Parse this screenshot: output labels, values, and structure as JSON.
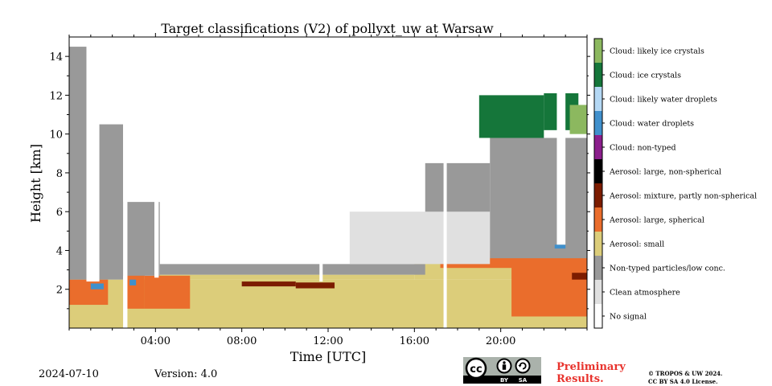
{
  "chart_data": {
    "type": "heatmap",
    "title": "Target classifications (V2) of pollyxt_uw at Warsaw",
    "xlabel": "Time [UTC]",
    "ylabel": "Height [km]",
    "x_ticks": [
      "04:00",
      "08:00",
      "12:00",
      "16:00",
      "20:00"
    ],
    "x_tick_hours": [
      4,
      8,
      12,
      16,
      20
    ],
    "xlim_hours": [
      0,
      24
    ],
    "y_ticks": [
      2,
      4,
      6,
      8,
      10,
      12,
      14
    ],
    "ylim_km": [
      0,
      15
    ],
    "legend_placement": "right",
    "classes": [
      {
        "label": "Cloud: likely ice crystals",
        "color": "#8cb85f"
      },
      {
        "label": "Cloud: ice crystals",
        "color": "#15763a"
      },
      {
        "label": "Cloud: likely water droplets",
        "color": "#b4d8f4"
      },
      {
        "label": "Cloud: water droplets",
        "color": "#4090cc"
      },
      {
        "label": "Cloud: non-typed",
        "color": "#8b1e8c"
      },
      {
        "label": "Aerosol: large, non-spherical",
        "color": "#000000"
      },
      {
        "label": "Aerosol: mixture, partly non-spherical",
        "color": "#7c1c00"
      },
      {
        "label": "Aerosol: large, spherical",
        "color": "#ea6d2c"
      },
      {
        "label": "Aerosol: small",
        "color": "#dccd7a"
      },
      {
        "label": "Non-typed particles/low conc.",
        "color": "#999999"
      },
      {
        "label": "Clean atmosphere",
        "color": "#e0e0e0"
      },
      {
        "label": "No signal",
        "color": "#ffffff"
      }
    ],
    "regions": [
      {
        "class": "Aerosol: small",
        "t": [
          0,
          24
        ],
        "h": [
          0,
          2.5
        ]
      },
      {
        "class": "Aerosol: small",
        "t": [
          4,
          16
        ],
        "h": [
          2.5,
          2.75
        ]
      },
      {
        "class": "Aerosol: small",
        "t": [
          16,
          24
        ],
        "h": [
          2.5,
          3.6
        ]
      },
      {
        "class": "Aerosol: large, spherical",
        "t": [
          0,
          1.8
        ],
        "h": [
          1.2,
          2.5
        ]
      },
      {
        "class": "Aerosol: large, spherical",
        "t": [
          2.7,
          3.5
        ],
        "h": [
          1.0,
          3.9
        ]
      },
      {
        "class": "Aerosol: large, spherical",
        "t": [
          3.5,
          5.6
        ],
        "h": [
          1.0,
          2.7
        ]
      },
      {
        "class": "Aerosol: large, spherical",
        "t": [
          20.5,
          24
        ],
        "h": [
          0.6,
          4.2
        ]
      },
      {
        "class": "Aerosol: large, spherical",
        "t": [
          17.2,
          21
        ],
        "h": [
          3.1,
          4.0
        ]
      },
      {
        "class": "Aerosol: mixture, partly non-spherical",
        "t": [
          8,
          10.5
        ],
        "h": [
          2.15,
          2.4
        ]
      },
      {
        "class": "Aerosol: mixture, partly non-spherical",
        "t": [
          10.5,
          12.3
        ],
        "h": [
          2.05,
          2.35
        ]
      },
      {
        "class": "Aerosol: mixture, partly non-spherical",
        "t": [
          23.3,
          24
        ],
        "h": [
          2.5,
          2.85
        ]
      },
      {
        "class": "Non-typed particles/low conc.",
        "t": [
          0,
          1.3
        ],
        "h": [
          2.5,
          14.5
        ]
      },
      {
        "class": "Non-typed particles/low conc.",
        "t": [
          1.3,
          2.5
        ],
        "h": [
          2.5,
          10.5
        ]
      },
      {
        "class": "Non-typed particles/low conc.",
        "t": [
          2.5,
          4.2
        ],
        "h": [
          2.7,
          6.5
        ]
      },
      {
        "class": "Non-typed particles/low conc.",
        "t": [
          4.2,
          16.5
        ],
        "h": [
          2.75,
          3.3
        ]
      },
      {
        "class": "Non-typed particles/low conc.",
        "t": [
          16.5,
          19.5
        ],
        "h": [
          3.6,
          8.5
        ]
      },
      {
        "class": "Non-typed particles/low conc.",
        "t": [
          19.5,
          24
        ],
        "h": [
          3.6,
          9.8
        ]
      },
      {
        "class": "Clean atmosphere",
        "t": [
          13,
          19.5
        ],
        "h": [
          3.3,
          6.0
        ]
      },
      {
        "class": "Cloud: ice crystals",
        "t": [
          19,
          22
        ],
        "h": [
          9.8,
          12.0
        ]
      },
      {
        "class": "Cloud: ice crystals",
        "t": [
          22,
          23.6
        ],
        "h": [
          10.2,
          12.1
        ]
      },
      {
        "class": "Cloud: likely ice crystals",
        "t": [
          23.2,
          24
        ],
        "h": [
          10.0,
          11.5
        ]
      },
      {
        "class": "Cloud: water droplets",
        "t": [
          1.0,
          1.6
        ],
        "h": [
          2.0,
          2.3
        ]
      },
      {
        "class": "Cloud: water droplets",
        "t": [
          2.8,
          3.1
        ],
        "h": [
          2.2,
          2.5
        ]
      },
      {
        "class": "Cloud: water droplets",
        "t": [
          22.5,
          23.0
        ],
        "h": [
          4.1,
          4.3
        ]
      },
      {
        "class": "No signal",
        "t": [
          0.8,
          1.4
        ],
        "h": [
          2.4,
          15
        ]
      },
      {
        "class": "No signal",
        "t": [
          2.5,
          2.7
        ],
        "h": [
          0,
          15
        ]
      },
      {
        "class": "No signal",
        "t": [
          3.95,
          4.15
        ],
        "h": [
          2.6,
          15
        ]
      },
      {
        "class": "No signal",
        "t": [
          11.6,
          11.75
        ],
        "h": [
          2.4,
          15
        ]
      },
      {
        "class": "No signal",
        "t": [
          17.35,
          17.5
        ],
        "h": [
          0,
          15
        ]
      },
      {
        "class": "No signal",
        "t": [
          22.6,
          23.0
        ],
        "h": [
          4.3,
          15
        ]
      }
    ]
  },
  "footer": {
    "date": "2024-07-10",
    "version": "Version: 4.0",
    "preliminary_line1": "Preliminary",
    "preliminary_line2": "Results.",
    "copyright_line1": "© TROPOS & UW 2024.",
    "copyright_line2": "CC BY SA 4.0 License.",
    "cc_label": "cc",
    "by_label": "BY",
    "sa_label": "SA"
  }
}
